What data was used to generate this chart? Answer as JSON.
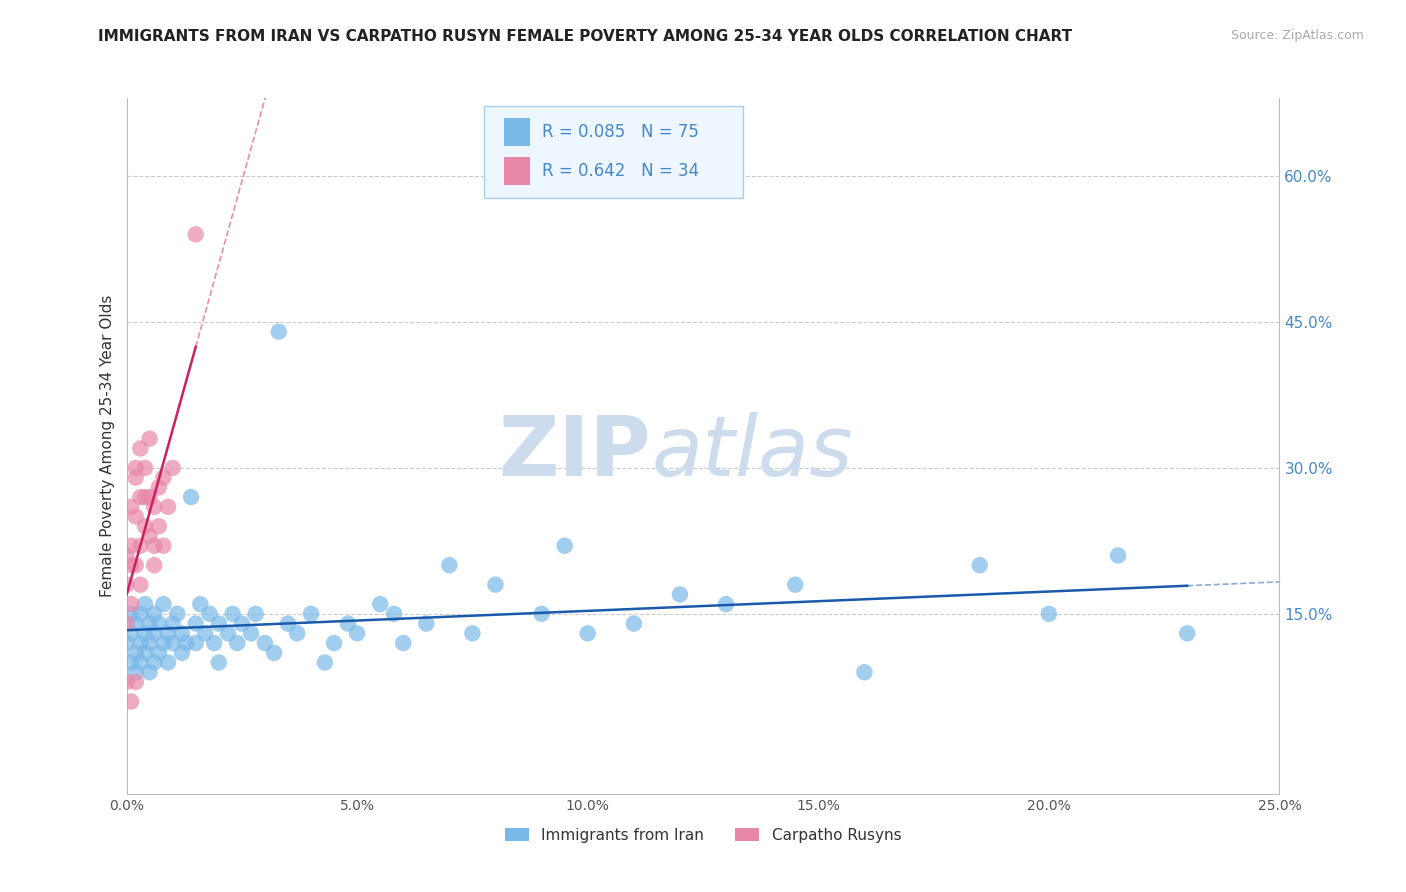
{
  "title": "IMMIGRANTS FROM IRAN VS CARPATHO RUSYN FEMALE POVERTY AMONG 25-34 YEAR OLDS CORRELATION CHART",
  "source": "Source: ZipAtlas.com",
  "ylabel": "Female Poverty Among 25-34 Year Olds",
  "xlim": [
    0.0,
    0.25
  ],
  "ylim": [
    -0.035,
    0.68
  ],
  "xticks": [
    0.0,
    0.05,
    0.1,
    0.15,
    0.2,
    0.25
  ],
  "yticks": [
    0.15,
    0.3,
    0.45,
    0.6
  ],
  "watermark": "ZIPatlas",
  "watermark_color": "#ccdcec",
  "watermark_fontsize": 60,
  "series": [
    {
      "name": "Immigrants from Iran",
      "R": 0.085,
      "N": 75,
      "color": "#7ab8e8",
      "trend_color": "#1a5aaa",
      "x": [
        0.0,
        0.001,
        0.001,
        0.001,
        0.002,
        0.002,
        0.002,
        0.003,
        0.003,
        0.003,
        0.004,
        0.004,
        0.004,
        0.005,
        0.005,
        0.005,
        0.006,
        0.006,
        0.006,
        0.007,
        0.007,
        0.008,
        0.008,
        0.009,
        0.009,
        0.01,
        0.01,
        0.011,
        0.012,
        0.012,
        0.013,
        0.014,
        0.015,
        0.015,
        0.016,
        0.017,
        0.018,
        0.019,
        0.02,
        0.02,
        0.022,
        0.023,
        0.024,
        0.025,
        0.027,
        0.028,
        0.03,
        0.032,
        0.033,
        0.035,
        0.037,
        0.04,
        0.043,
        0.045,
        0.048,
        0.05,
        0.055,
        0.058,
        0.06,
        0.065,
        0.07,
        0.075,
        0.08,
        0.09,
        0.095,
        0.1,
        0.11,
        0.12,
        0.13,
        0.145,
        0.16,
        0.185,
        0.2,
        0.215,
        0.23
      ],
      "y": [
        0.12,
        0.1,
        0.13,
        0.15,
        0.11,
        0.14,
        0.09,
        0.12,
        0.15,
        0.1,
        0.13,
        0.11,
        0.16,
        0.12,
        0.09,
        0.14,
        0.13,
        0.1,
        0.15,
        0.11,
        0.14,
        0.12,
        0.16,
        0.13,
        0.1,
        0.14,
        0.12,
        0.15,
        0.13,
        0.11,
        0.12,
        0.27,
        0.14,
        0.12,
        0.16,
        0.13,
        0.15,
        0.12,
        0.14,
        0.1,
        0.13,
        0.15,
        0.12,
        0.14,
        0.13,
        0.15,
        0.12,
        0.11,
        0.44,
        0.14,
        0.13,
        0.15,
        0.1,
        0.12,
        0.14,
        0.13,
        0.16,
        0.15,
        0.12,
        0.14,
        0.2,
        0.13,
        0.18,
        0.15,
        0.22,
        0.13,
        0.14,
        0.17,
        0.16,
        0.18,
        0.09,
        0.2,
        0.15,
        0.21,
        0.13
      ]
    },
    {
      "name": "Carpatho Rusyns",
      "R": 0.642,
      "N": 34,
      "color": "#e888a8",
      "trend_color": "#cc2060",
      "x": [
        0.0,
        0.0,
        0.0,
        0.0,
        0.001,
        0.001,
        0.001,
        0.001,
        0.001,
        0.002,
        0.002,
        0.002,
        0.002,
        0.002,
        0.003,
        0.003,
        0.003,
        0.003,
        0.004,
        0.004,
        0.004,
        0.005,
        0.005,
        0.005,
        0.006,
        0.006,
        0.006,
        0.007,
        0.007,
        0.008,
        0.008,
        0.009,
        0.01,
        0.015
      ],
      "y": [
        0.21,
        0.18,
        0.14,
        0.08,
        0.22,
        0.2,
        0.26,
        0.16,
        0.06,
        0.3,
        0.25,
        0.29,
        0.2,
        0.08,
        0.32,
        0.27,
        0.22,
        0.18,
        0.27,
        0.24,
        0.3,
        0.23,
        0.27,
        0.33,
        0.2,
        0.26,
        0.22,
        0.28,
        0.24,
        0.29,
        0.22,
        0.26,
        0.3,
        0.54
      ]
    }
  ],
  "legend_box_facecolor": "#eef6ff",
  "legend_box_edgecolor": "#aaccee",
  "axis_label_fontsize": 11,
  "title_fontsize": 11,
  "tick_label_right_color": "#4488cc",
  "tick_label_bottom_color": "#555555",
  "label_color": "#333333"
}
